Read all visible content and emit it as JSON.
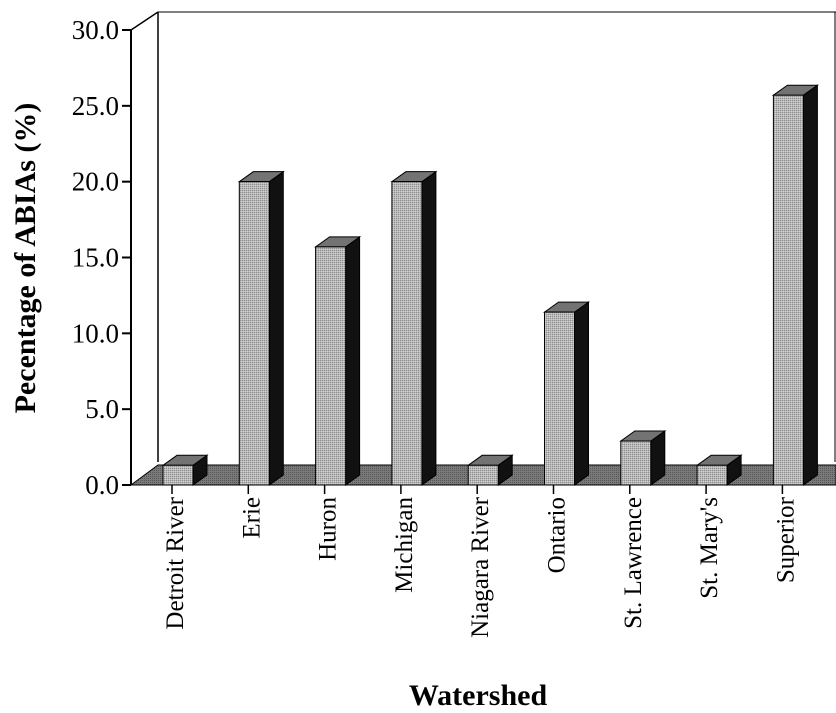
{
  "chart_data": {
    "type": "bar",
    "title": "",
    "xlabel": "Watershed",
    "ylabel": "Pecentage of ABIAs (%)",
    "ylim": [
      0,
      30
    ],
    "yticks": [
      "0.0",
      "5.0",
      "10.0",
      "15.0",
      "20.0",
      "25.0",
      "30.0"
    ],
    "categories": [
      "Detroit River",
      "Erie",
      "Huron",
      "Michigan",
      "Niagara River",
      "Ontario",
      "St. Lawrence",
      "St. Mary's",
      "Superior"
    ],
    "values": [
      1.3,
      20.0,
      15.7,
      20.0,
      1.3,
      11.4,
      2.9,
      1.3,
      25.7
    ],
    "grid": false,
    "style": "3d",
    "colors": {
      "front": "#b3b3b3",
      "top": "#737373",
      "side": "#111111",
      "floor": "#777777"
    }
  }
}
